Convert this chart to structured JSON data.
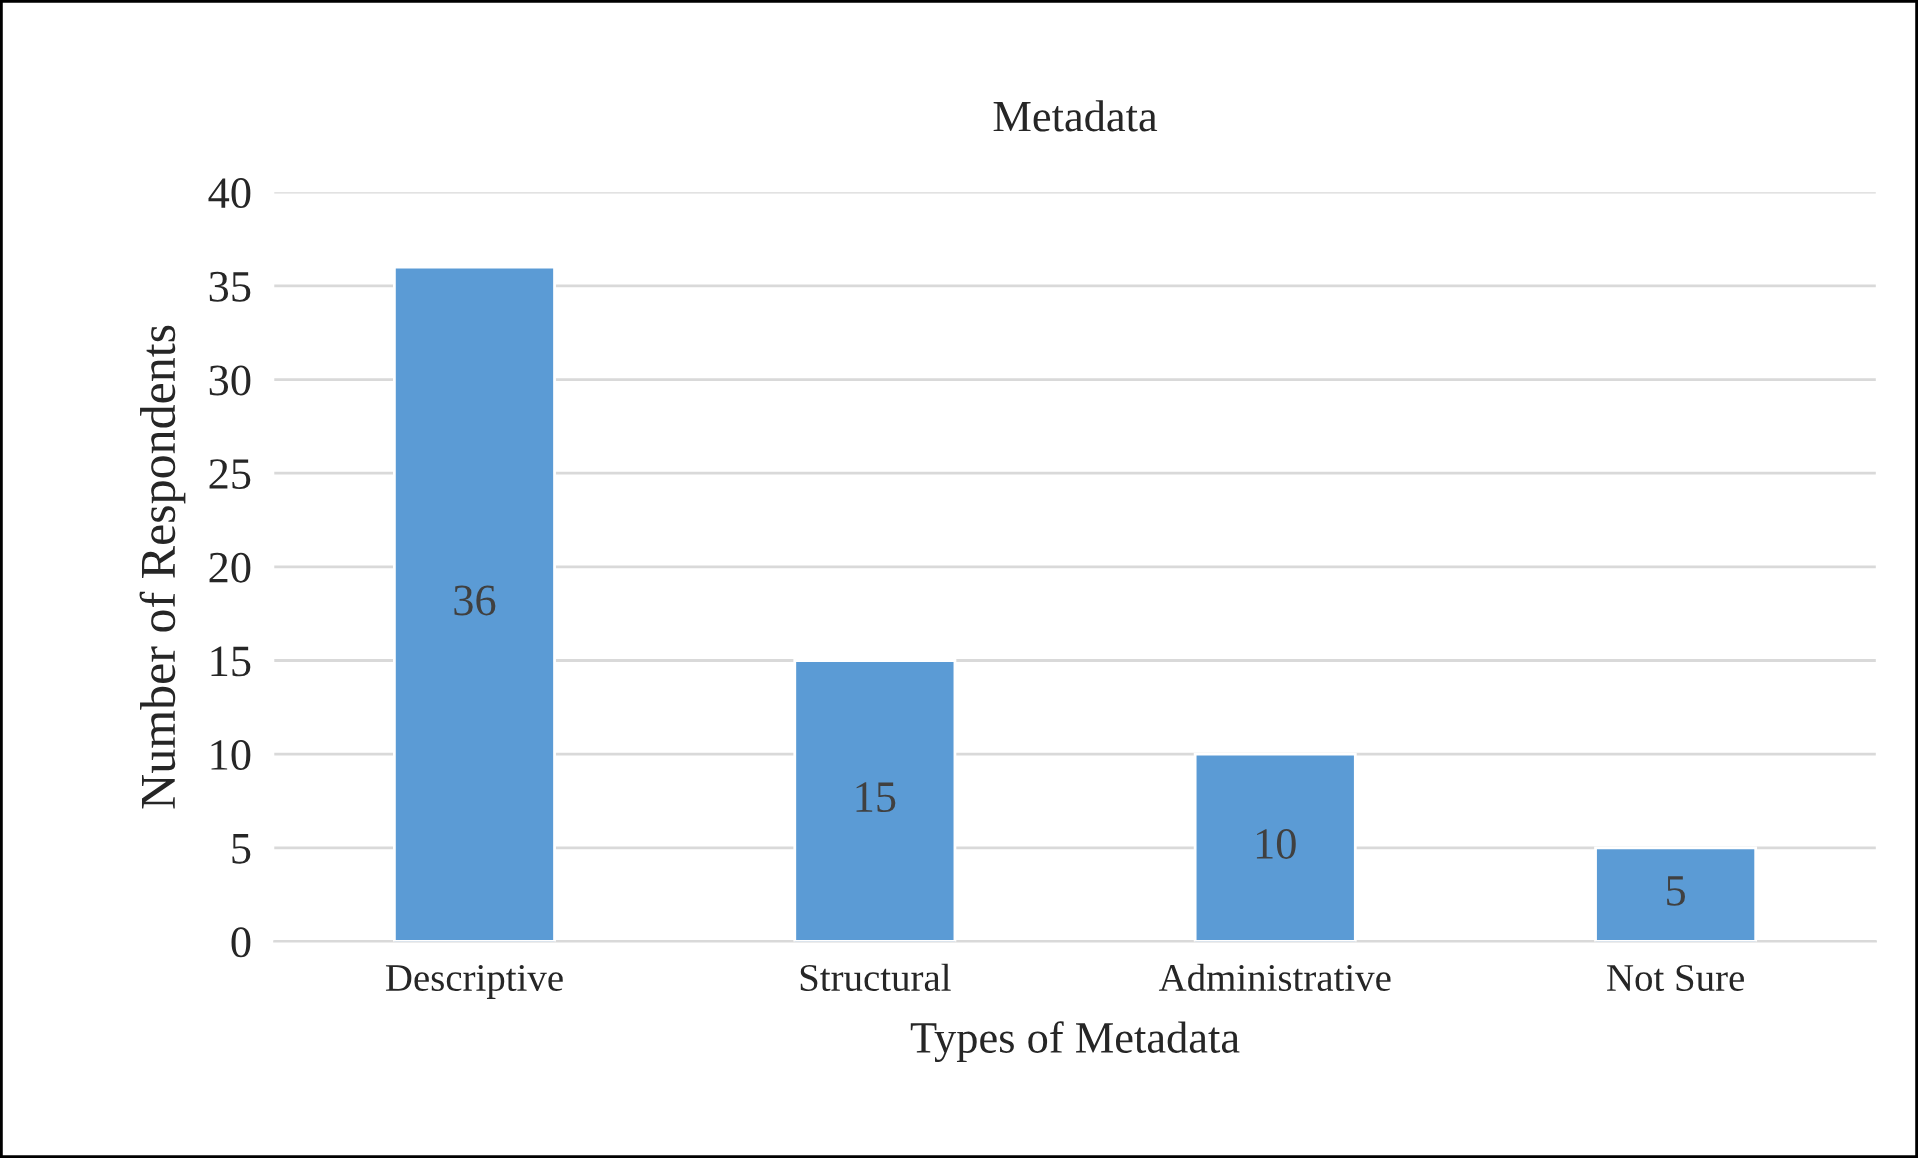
{
  "chart_data": {
    "type": "bar",
    "title": "Metadata",
    "xlabel": "Types of Metadata",
    "ylabel": "Number of Respondents",
    "categories": [
      "Descriptive",
      "Structural",
      "Administrative",
      "Not Sure"
    ],
    "values": [
      36,
      15,
      10,
      5
    ],
    "color": "#5b9bd5",
    "ylim": [
      0,
      40
    ],
    "yticks": [
      0,
      5,
      10,
      15,
      20,
      25,
      30,
      35,
      40
    ],
    "grid": "y",
    "data_labels": true,
    "legend": false
  }
}
